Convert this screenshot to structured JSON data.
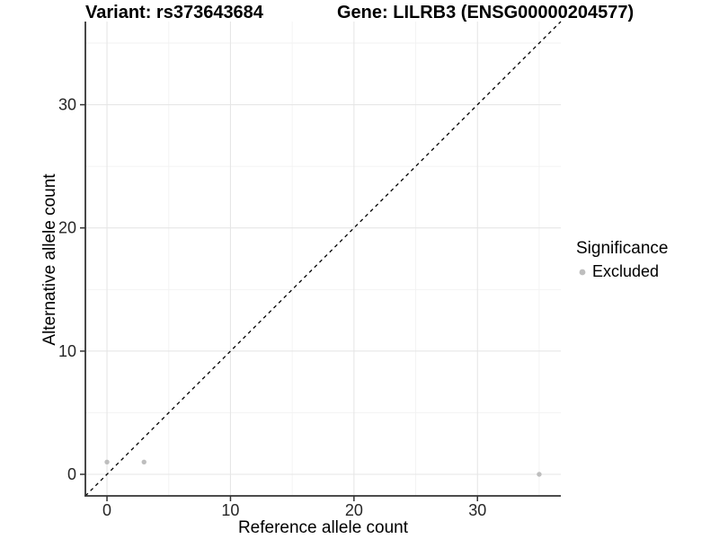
{
  "chart_data": {
    "type": "scatter",
    "title_left": "Variant: rs373643684",
    "title_right": "Gene: LILRB3 (ENSG00000204577)",
    "xlabel": "Reference allele count",
    "ylabel": "Alternative allele count",
    "xlim": [
      -1.75,
      36.75
    ],
    "ylim": [
      -1.75,
      36.75
    ],
    "x_ticks": [
      0,
      10,
      20,
      30
    ],
    "y_ticks": [
      0,
      10,
      20,
      30
    ],
    "x_minor_ticks": [
      5,
      15,
      25,
      35
    ],
    "y_minor_ticks": [
      5,
      15,
      25,
      35
    ],
    "grid": "on",
    "aspect": "equal",
    "reference_line": {
      "kind": "identity y=x",
      "style": "dashed",
      "color": "#000000"
    },
    "series": [
      {
        "name": "Excluded",
        "marker": "circle",
        "color": "#bebebe",
        "points": [
          [
            0,
            1
          ],
          [
            3,
            1
          ],
          [
            35,
            0
          ]
        ]
      }
    ],
    "legend": {
      "title": "Significance",
      "position": "right",
      "items": [
        {
          "label": "Excluded",
          "color": "#bebebe"
        }
      ]
    },
    "colors": {
      "background": "#ffffff",
      "axis_line": "#333333",
      "tick_mark": "#333333",
      "tick_label": "#262626",
      "grid_major": "#e6e6e6",
      "grid_minor": "#f2f2f2"
    }
  }
}
